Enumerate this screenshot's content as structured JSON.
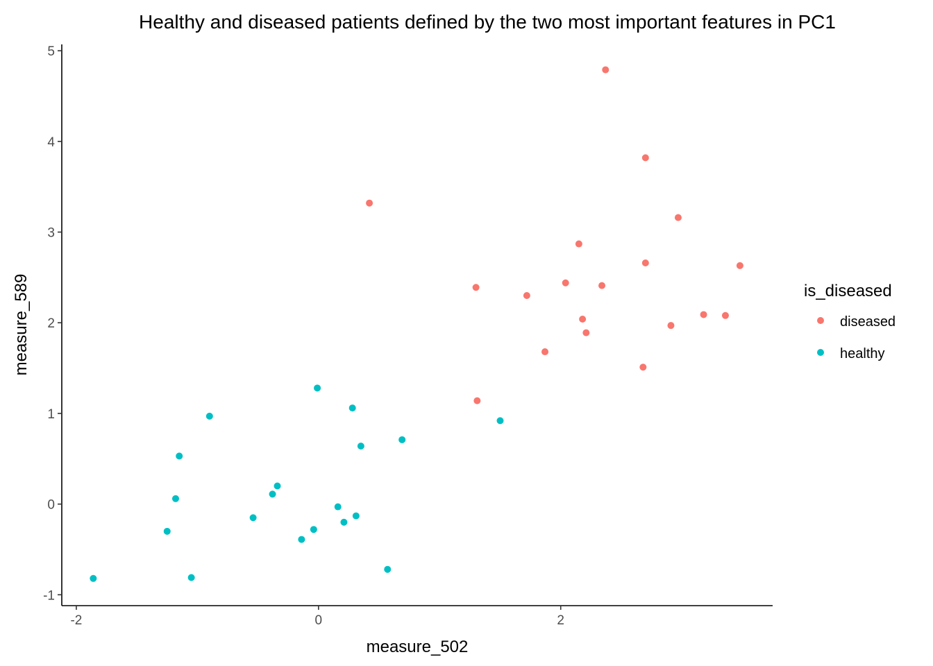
{
  "chart_data": {
    "type": "scatter",
    "title": "Healthy and diseased patients defined by the two most important features in PC1",
    "xlabel": "measure_502",
    "ylabel": "measure_589",
    "xlim": [
      -2.12,
      3.75
    ],
    "ylim": [
      -1.12,
      5.07
    ],
    "x_ticks": [
      -2,
      0,
      2
    ],
    "y_ticks": [
      -1,
      0,
      1,
      2,
      3,
      4,
      5
    ],
    "x_tick_labels": [
      "-2",
      "0",
      "2"
    ],
    "y_tick_labels": [
      "-1",
      "0",
      "1",
      "2",
      "3",
      "4",
      "5"
    ],
    "grid": false,
    "legend": {
      "title": "is_diseased",
      "position": "right"
    },
    "series": [
      {
        "name": "diseased",
        "color": "#F8766D",
        "points": [
          [
            2.37,
            4.79
          ],
          [
            2.7,
            3.82
          ],
          [
            0.42,
            3.32
          ],
          [
            2.97,
            3.16
          ],
          [
            2.15,
            2.87
          ],
          [
            2.7,
            2.66
          ],
          [
            3.48,
            2.63
          ],
          [
            2.04,
            2.44
          ],
          [
            2.34,
            2.41
          ],
          [
            1.3,
            2.39
          ],
          [
            1.72,
            2.3
          ],
          [
            2.18,
            2.04
          ],
          [
            3.18,
            2.09
          ],
          [
            3.36,
            2.08
          ],
          [
            2.91,
            1.97
          ],
          [
            2.21,
            1.89
          ],
          [
            1.87,
            1.68
          ],
          [
            2.68,
            1.51
          ],
          [
            1.31,
            1.14
          ]
        ]
      },
      {
        "name": "healthy",
        "color": "#00BFC4",
        "points": [
          [
            -0.01,
            1.28
          ],
          [
            0.28,
            1.06
          ],
          [
            -0.9,
            0.97
          ],
          [
            1.5,
            0.92
          ],
          [
            0.69,
            0.71
          ],
          [
            0.35,
            0.64
          ],
          [
            -1.15,
            0.53
          ],
          [
            -0.34,
            0.2
          ],
          [
            -0.38,
            0.11
          ],
          [
            -1.18,
            0.06
          ],
          [
            0.16,
            -0.03
          ],
          [
            0.31,
            -0.13
          ],
          [
            -0.54,
            -0.15
          ],
          [
            0.21,
            -0.2
          ],
          [
            -0.04,
            -0.28
          ],
          [
            -1.25,
            -0.3
          ],
          [
            -0.14,
            -0.39
          ],
          [
            0.57,
            -0.72
          ],
          [
            -1.05,
            -0.81
          ],
          [
            -1.86,
            -0.82
          ]
        ]
      }
    ]
  }
}
